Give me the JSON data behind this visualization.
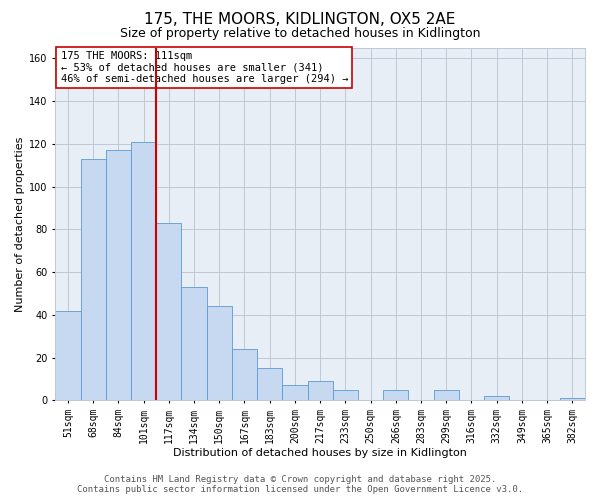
{
  "title": "175, THE MOORS, KIDLINGTON, OX5 2AE",
  "subtitle": "Size of property relative to detached houses in Kidlington",
  "xlabel": "Distribution of detached houses by size in Kidlington",
  "ylabel": "Number of detached properties",
  "categories": [
    "51sqm",
    "68sqm",
    "84sqm",
    "101sqm",
    "117sqm",
    "134sqm",
    "150sqm",
    "167sqm",
    "183sqm",
    "200sqm",
    "217sqm",
    "233sqm",
    "250sqm",
    "266sqm",
    "283sqm",
    "299sqm",
    "316sqm",
    "332sqm",
    "349sqm",
    "365sqm",
    "382sqm"
  ],
  "values": [
    42,
    113,
    117,
    121,
    83,
    53,
    44,
    24,
    15,
    7,
    9,
    5,
    0,
    5,
    0,
    5,
    0,
    2,
    0,
    0,
    1
  ],
  "bar_color": "#c6d9f0",
  "bar_edge_color": "#5b9bd5",
  "vline_index": 4,
  "vline_color": "#cc0000",
  "ylim": [
    0,
    165
  ],
  "yticks": [
    0,
    20,
    40,
    60,
    80,
    100,
    120,
    140,
    160
  ],
  "annotation_title": "175 THE MOORS: 111sqm",
  "annotation_line1": "← 53% of detached houses are smaller (341)",
  "annotation_line2": "46% of semi-detached houses are larger (294) →",
  "footer_line1": "Contains HM Land Registry data © Crown copyright and database right 2025.",
  "footer_line2": "Contains public sector information licensed under the Open Government Licence v3.0.",
  "background_color": "#ffffff",
  "plot_bg_color": "#e8eef6",
  "grid_color": "#c0c8d8",
  "title_fontsize": 11,
  "subtitle_fontsize": 9,
  "axis_label_fontsize": 8,
  "tick_fontsize": 7,
  "footer_fontsize": 6.5
}
